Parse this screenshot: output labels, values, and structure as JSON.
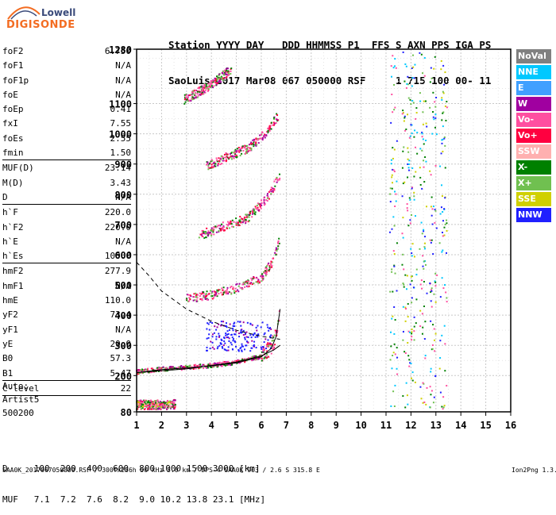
{
  "logo": {
    "line1": "Lowell",
    "line2": "DIGISONDE"
  },
  "header": {
    "line1": "Station YYYY DAY   DDD HHMMSS P1  FFS S AXN PPS IGA PS",
    "line2": "SaoLuis 2017 Mar08 067 050000 RSF     1 715 100 00- 11"
  },
  "params": [
    {
      "label": "foF2",
      "value": "6.750"
    },
    {
      "label": "foF1",
      "value": "N/A"
    },
    {
      "label": "foF1p",
      "value": "N/A"
    },
    {
      "label": "foE",
      "value": "N/A"
    },
    {
      "label": "foEp",
      "value": "0.41"
    },
    {
      "label": "fxI",
      "value": "7.55"
    },
    {
      "label": "foEs",
      "value": "2.55"
    },
    {
      "label": "fmin",
      "value": "1.50"
    },
    {
      "label": "MUF(D)",
      "value": "23.14"
    },
    {
      "label": "M(D)",
      "value": "3.43"
    },
    {
      "label": "D",
      "value": "N/A"
    },
    {
      "label": "h`F",
      "value": "220.0"
    },
    {
      "label": "h`F2",
      "value": "220.0"
    },
    {
      "label": "h`E",
      "value": "N/A"
    },
    {
      "label": "h`Es",
      "value": "100.0"
    },
    {
      "label": "hmF2",
      "value": "277.9"
    },
    {
      "label": "hmF1",
      "value": "N/A"
    },
    {
      "label": "hmE",
      "value": "110.0"
    },
    {
      "label": "yF2",
      "value": "73.4"
    },
    {
      "label": "yF1",
      "value": "N/A"
    },
    {
      "label": "yE",
      "value": "20.0"
    },
    {
      "label": "B0",
      "value": "57.3"
    },
    {
      "label": "B1",
      "value": "5.47"
    },
    {
      "label": "C-level",
      "value": "22"
    }
  ],
  "auto": {
    "line1": "Auto:",
    "line2": "Artist5",
    "line3": "500200"
  },
  "muf_table": {
    "line1": "D     100  200  400  600  800 1000 1500 3000 [km]",
    "line2": "MUF   7.1  7.2  7.6  8.2  9.0 10.2 13.8 23.1 [MHz]"
  },
  "footer": {
    "left": "SAA0K_2017067050000.RSF / 300fx256h 50 kHz 5.0 km / DPS-4 SAA0K 903 / 2.6 S 315.8 E",
    "right": "Ion2Png 1.3.17"
  },
  "legend": [
    {
      "label": "NoVal",
      "color": "#808080"
    },
    {
      "label": "NNE",
      "color": "#00c8ff"
    },
    {
      "label": "E",
      "color": "#40a0ff"
    },
    {
      "label": "W",
      "color": "#a000a0"
    },
    {
      "label": "Vo-",
      "color": "#ff4fa0"
    },
    {
      "label": "Vo+",
      "color": "#ff0040"
    },
    {
      "label": "SSW",
      "color": "#ffb0b0"
    },
    {
      "label": "X-",
      "color": "#008000"
    },
    {
      "label": "X+",
      "color": "#70c050"
    },
    {
      "label": "SSE",
      "color": "#d0d000"
    },
    {
      "label": "NNW",
      "color": "#2020ff"
    }
  ],
  "chart_data": {
    "type": "scatter",
    "xlim": [
      1,
      16
    ],
    "ylim": [
      80,
      1280
    ],
    "x_ticks": [
      1,
      2,
      3,
      4,
      5,
      6,
      7,
      8,
      9,
      10,
      11,
      12,
      13,
      14,
      15,
      16
    ],
    "y_ticks": [
      80,
      200,
      300,
      400,
      500,
      600,
      700,
      800,
      900,
      1000,
      1100,
      1280
    ],
    "x_ticks_labels": [
      "1",
      "2",
      "3",
      "4",
      "5",
      "6",
      "7",
      "8",
      "9",
      "10",
      "11",
      "12",
      "13",
      "14",
      "15",
      "16"
    ],
    "y_ticks_labels": [
      "80",
      "200",
      "300",
      "400",
      "500",
      "600",
      "700",
      "800",
      "900",
      "1000",
      "1100",
      "1280"
    ],
    "grid": true,
    "traces": [
      {
        "name": "F-trace",
        "points": [
          [
            1.0,
            210
          ],
          [
            2.0,
            220
          ],
          [
            3.0,
            225
          ],
          [
            4.0,
            232
          ],
          [
            5.0,
            242
          ],
          [
            6.0,
            262
          ],
          [
            6.4,
            290
          ],
          [
            6.6,
            330
          ],
          [
            6.75,
            420
          ]
        ]
      },
      {
        "name": "F-trace-2hop",
        "points": [
          [
            3.0,
            450
          ],
          [
            4.0,
            465
          ],
          [
            5.0,
            485
          ],
          [
            6.0,
            520
          ],
          [
            6.5,
            580
          ],
          [
            6.75,
            650
          ]
        ]
      },
      {
        "name": "F-trace-3hop",
        "points": [
          [
            3.5,
            660
          ],
          [
            4.5,
            690
          ],
          [
            5.5,
            720
          ],
          [
            6.3,
            790
          ],
          [
            6.75,
            860
          ]
        ]
      },
      {
        "name": "F-trace-4hop",
        "points": [
          [
            3.8,
            890
          ],
          [
            4.6,
            920
          ],
          [
            5.5,
            950
          ],
          [
            6.3,
            1010
          ],
          [
            6.7,
            1060
          ]
        ]
      },
      {
        "name": "F-trace-5hop",
        "points": [
          [
            2.9,
            1110
          ],
          [
            3.4,
            1130
          ],
          [
            4.0,
            1160
          ],
          [
            4.8,
            1210
          ]
        ]
      },
      {
        "name": "Es-trace",
        "points": [
          [
            1.0,
            100
          ],
          [
            1.6,
            100
          ],
          [
            2.2,
            100
          ],
          [
            2.55,
            102
          ]
        ]
      }
    ],
    "profile_curve": [
      [
        1.0,
        210
      ],
      [
        3.0,
        222
      ],
      [
        5.0,
        245
      ],
      [
        6.0,
        265
      ],
      [
        6.5,
        285
      ],
      [
        6.75,
        300
      ]
    ],
    "dashed_curve": [
      [
        1.0,
        575
      ],
      [
        1.5,
        530
      ],
      [
        2.0,
        480
      ],
      [
        3.0,
        420
      ],
      [
        4.0,
        380
      ],
      [
        5.0,
        350
      ],
      [
        6.0,
        330
      ],
      [
        6.75,
        320
      ]
    ],
    "noise_columns": [
      11.3,
      11.8,
      12.1,
      12.5,
      12.9,
      13.3
    ]
  }
}
